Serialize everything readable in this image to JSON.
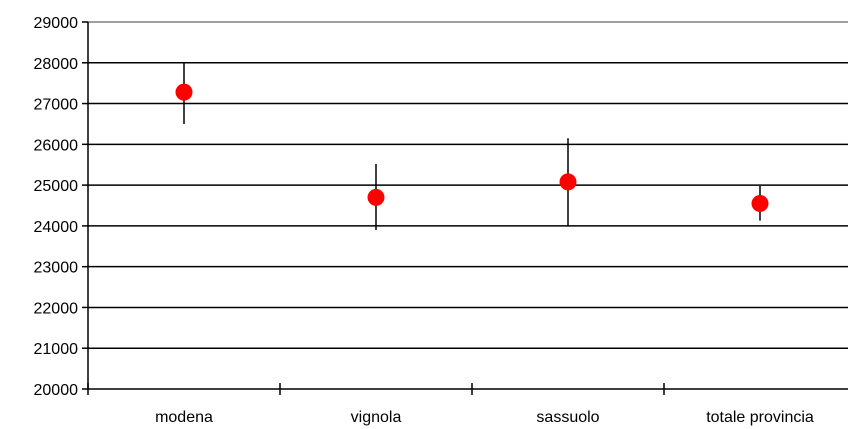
{
  "chart_data": {
    "type": "scatter",
    "title": "",
    "xlabel": "",
    "ylabel": "",
    "ylim": [
      20000,
      29000
    ],
    "yticks": [
      20000,
      21000,
      22000,
      23000,
      24000,
      25000,
      26000,
      27000,
      28000,
      29000
    ],
    "grid": true,
    "legend": "none",
    "categories": [
      "modena",
      "vignola",
      "sassuolo",
      "totale provincia"
    ],
    "series": [
      {
        "values": [
          27280,
          24700,
          25080,
          24550
        ],
        "error_low": [
          26500,
          23900,
          24000,
          24130
        ],
        "error_high": [
          28000,
          25520,
          26150,
          24980
        ],
        "marker_color": "#ff0000"
      }
    ],
    "gridline_color": "#000000",
    "top_gridline_color": "#808080",
    "errorbar_color": "#000000"
  }
}
